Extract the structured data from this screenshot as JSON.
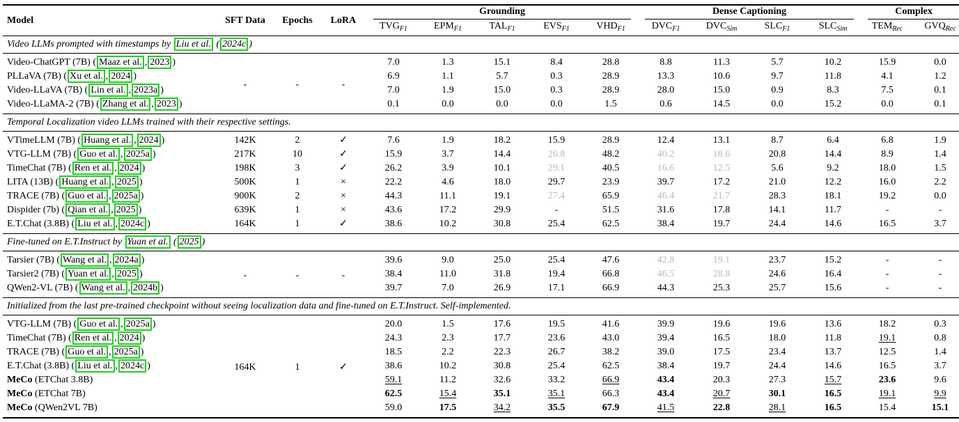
{
  "table": {
    "head": {
      "model": "Model",
      "sft": "SFT Data",
      "epochs": "Epochs",
      "lora": "LoRA",
      "groups": [
        {
          "label": "Grounding",
          "span": 5
        },
        {
          "label": "Dense Captioning",
          "span": 4
        },
        {
          "label": "Complex",
          "span": 2
        }
      ],
      "metrics": [
        {
          "base": "TVG",
          "sub": "F1"
        },
        {
          "base": "EPM",
          "sub": "F1"
        },
        {
          "base": "TAL",
          "sub": "F1"
        },
        {
          "base": "EVS",
          "sub": "F1"
        },
        {
          "base": "VHD",
          "sub": "F1"
        },
        {
          "base": "DVC",
          "sub": "F1"
        },
        {
          "base": "DVC",
          "sub": "Sim"
        },
        {
          "base": "SLC",
          "sub": "F1"
        },
        {
          "base": "SLC",
          "sub": "Sim"
        },
        {
          "base": "TEM",
          "sub": "Rec"
        },
        {
          "base": "GVQ",
          "sub": "Rec"
        }
      ]
    },
    "colors": {
      "citation_box": "#1fd11f",
      "muted_value": "#b9b9b9"
    },
    "symbols": {
      "check": "✓",
      "cross": "×",
      "dash": "-"
    },
    "sections": [
      {
        "header": {
          "text": "Video LLMs prompted with timestamps by ",
          "author": "Liu et al.",
          "year": "2024c",
          "cite_style": "textual"
        },
        "meta_span": [
          "-",
          "-",
          "-"
        ],
        "rows": [
          {
            "model": {
              "text": "Video-ChatGPT (7B)",
              "author": "Maaz et al.",
              "year": "2023"
            },
            "values": [
              "7.0",
              "1.3",
              "15.1",
              "8.4",
              "28.8",
              "8.8",
              "11.3",
              "5.7",
              "10.2",
              "15.9",
              "0.0"
            ]
          },
          {
            "model": {
              "text": "PLLaVA (7B)",
              "author": "Xu et al.",
              "year": "2024"
            },
            "values": [
              "6.9",
              "1.1",
              "5.7",
              "0.3",
              "28.9",
              "13.3",
              "10.6",
              "9.7",
              "11.8",
              "4.1",
              "1.2"
            ]
          },
          {
            "model": {
              "text": "Video-LLaVA (7B)",
              "author": "Lin et al.",
              "year": "2023a"
            },
            "values": [
              "7.0",
              "1.9",
              "15.0",
              "0.3",
              "28.9",
              "28.0",
              "15.0",
              "0.9",
              "8.3",
              "7.5",
              "0.1"
            ]
          },
          {
            "model": {
              "text": "Video-LLaMA-2 (7B)",
              "author": "Zhang et al.",
              "year": "2023"
            },
            "values": [
              "0.1",
              "0.0",
              "0.0",
              "0.0",
              "1.5",
              "0.6",
              "14.5",
              "0.0",
              "15.2",
              "0.0",
              "0.1"
            ]
          }
        ]
      },
      {
        "header": {
          "text": "Temporal Localization video LLMs trained with their respective settings."
        },
        "rows": [
          {
            "model": {
              "text": "VTimeLLM (7B)",
              "author": "Huang et al.",
              "year": "2024"
            },
            "meta": [
              "142K",
              "2",
              "✓"
            ],
            "values": [
              "7.6",
              "1.9",
              "18.2",
              "15.9",
              "28.9",
              "12.4",
              "13.1",
              "8.7",
              "6.4",
              "6.8",
              "1.9"
            ]
          },
          {
            "model": {
              "text": "VTG-LLM (7B)",
              "author": "Guo et al.",
              "year": "2025a"
            },
            "meta": [
              "217K",
              "10",
              "✓"
            ],
            "values": [
              "15.9",
              "3.7",
              "14.4",
              {
                "v": "26.8",
                "s": "g"
              },
              "48.2",
              {
                "v": "40.2",
                "s": "g"
              },
              {
                "v": "18.6",
                "s": "g"
              },
              "20.8",
              "14.4",
              "8.9",
              "1.4"
            ]
          },
          {
            "model": {
              "text": "TimeChat (7B)",
              "author": "Ren et al.",
              "year": "2024"
            },
            "meta": [
              "198K",
              "3",
              "✓"
            ],
            "values": [
              "26.2",
              "3.9",
              "10.1",
              {
                "v": "29.1",
                "s": "g"
              },
              "40.5",
              {
                "v": "16.6",
                "s": "g"
              },
              {
                "v": "12.5",
                "s": "g"
              },
              "5.6",
              "9.2",
              "18.0",
              "1.5"
            ]
          },
          {
            "model": {
              "text": "LITA (13B)",
              "author": "Huang et al.",
              "year": "2025"
            },
            "meta": [
              "500K",
              "1",
              "×"
            ],
            "values": [
              "22.2",
              "4.6",
              "18.0",
              "29.7",
              "23.9",
              "39.7",
              "17.2",
              "21.0",
              "12.2",
              "16.0",
              "2.2"
            ]
          },
          {
            "model": {
              "text": "TRACE (7B)",
              "author": "Guo et al.",
              "year": "2025a"
            },
            "meta": [
              "900K",
              "2",
              "×"
            ],
            "values": [
              "44.3",
              "11.1",
              "19.1",
              {
                "v": "27.4",
                "s": "g"
              },
              "65.9",
              {
                "v": "46.4",
                "s": "g"
              },
              {
                "v": "21.7",
                "s": "g"
              },
              "28.3",
              "18.1",
              "19.2",
              "0.0"
            ]
          },
          {
            "model": {
              "text": "Dispider (7b)",
              "author": "Qian et al.",
              "year": "2025"
            },
            "meta": [
              "639K",
              "1",
              "×"
            ],
            "values": [
              "43.6",
              "17.2",
              "29.9",
              "-",
              "51.5",
              "31.6",
              "17.8",
              "14.1",
              "11.7",
              "-",
              "-"
            ]
          },
          {
            "model": {
              "text": "E.T.Chat (3.8B)",
              "author": "Liu et al.",
              "year": "2024c"
            },
            "meta": [
              "164K",
              "1",
              "✓"
            ],
            "values": [
              "38.6",
              "10.2",
              "30.8",
              "25.4",
              "62.5",
              "38.4",
              "19.7",
              "24.4",
              "14.6",
              "16.5",
              "3.7"
            ]
          }
        ]
      },
      {
        "header": {
          "text": "Fine-tuned on E.T.Instruct by ",
          "author": "Yuan et al.",
          "year": "2025",
          "cite_style": "textual"
        },
        "meta_span": [
          "-",
          "-",
          "-"
        ],
        "rows": [
          {
            "model": {
              "text": "Tarsier (7B)",
              "author": "Wang et al.",
              "year": "2024a"
            },
            "values": [
              "39.6",
              "9.0",
              "25.0",
              "25.4",
              "47.6",
              {
                "v": "42.8",
                "s": "g"
              },
              {
                "v": "19.1",
                "s": "g"
              },
              "23.7",
              "15.2",
              "-",
              "-"
            ]
          },
          {
            "model": {
              "text": "Tarsier2 (7B)",
              "author": "Yuan et al.",
              "year": "2025"
            },
            "values": [
              "38.4",
              "11.0",
              "31.8",
              "19.4",
              "66.8",
              {
                "v": "46.5",
                "s": "g"
              },
              {
                "v": "28.8",
                "s": "g"
              },
              "24.6",
              "16.4",
              "-",
              "-"
            ]
          },
          {
            "model": {
              "text": "QWen2-VL (7B)",
              "author": "Wang et al.",
              "year": "2024b"
            },
            "values": [
              "39.7",
              "7.0",
              "26.9",
              "17.1",
              "66.9",
              "44.3",
              "25.3",
              "25.7",
              "15.6",
              "-",
              "-"
            ]
          }
        ]
      },
      {
        "header": {
          "text": "Initialized from the last pre-trained checkpoint without seeing localization data and fine-tuned on E.T.Instruct. Self-implemented."
        },
        "meta_span": [
          "164K",
          "1",
          "✓"
        ],
        "rows": [
          {
            "model": {
              "text": "VTG-LLM (7B)",
              "author": "Guo et al.",
              "year": "2025a"
            },
            "values": [
              "20.0",
              "1.5",
              "17.6",
              "19.5",
              "41.6",
              "39.9",
              "19.6",
              "19.6",
              "13.6",
              "18.2",
              "0.3"
            ]
          },
          {
            "model": {
              "text": "TimeChat (7B)",
              "author": "Ren et al.",
              "year": "2024"
            },
            "values": [
              "24.3",
              "2.3",
              "17.7",
              "23.6",
              "43.0",
              "39.4",
              "16.5",
              "18.0",
              "11.8",
              {
                "v": "19.1",
                "s": "u"
              },
              "0.8"
            ]
          },
          {
            "model": {
              "text": "TRACE (7B)",
              "author": "Guo et al.",
              "year": "2025a"
            },
            "values": [
              "18.5",
              "2.2",
              "22.3",
              "26.7",
              "38.2",
              "39.0",
              "17.5",
              "23.4",
              "13.7",
              "12.5",
              "1.4"
            ]
          },
          {
            "model": {
              "text": "E.T.Chat (3.8B)",
              "author": "Liu et al.",
              "year": "2024c"
            },
            "values": [
              "38.6",
              "10.2",
              "30.8",
              "25.4",
              "62.5",
              "38.4",
              "19.7",
              "24.4",
              "14.6",
              "16.5",
              "3.7"
            ]
          },
          {
            "model": {
              "bold_prefix": "MeCo",
              "text": " (ETChat 3.8B)"
            },
            "values": [
              {
                "v": "59.1",
                "s": "u"
              },
              "11.2",
              "32.6",
              "33.2",
              {
                "v": "66.9",
                "s": "u"
              },
              {
                "v": "43.4",
                "s": "b"
              },
              "20.3",
              "27.3",
              {
                "v": "15.7",
                "s": "u"
              },
              {
                "v": "23.6",
                "s": "b"
              },
              "9.6"
            ]
          },
          {
            "model": {
              "bold_prefix": "MeCo",
              "text": " (ETChat 7B)"
            },
            "values": [
              {
                "v": "62.5",
                "s": "b"
              },
              {
                "v": "15.4",
                "s": "u"
              },
              {
                "v": "35.1",
                "s": "b"
              },
              {
                "v": "35.1",
                "s": "u"
              },
              "66.3",
              {
                "v": "43.4",
                "s": "b"
              },
              {
                "v": "20.7",
                "s": "u"
              },
              {
                "v": "30.1",
                "s": "b"
              },
              {
                "v": "16.5",
                "s": "b"
              },
              {
                "v": "19.1",
                "s": "u"
              },
              {
                "v": "9.9",
                "s": "u"
              }
            ]
          },
          {
            "model": {
              "bold_prefix": "MeCo",
              "text": " (QWen2VL 7B)"
            },
            "values": [
              "59.0",
              {
                "v": "17.5",
                "s": "b"
              },
              {
                "v": "34.2",
                "s": "u"
              },
              {
                "v": "35.5",
                "s": "b"
              },
              {
                "v": "67.9",
                "s": "b"
              },
              {
                "v": "41.5",
                "s": "u"
              },
              {
                "v": "22.8",
                "s": "b"
              },
              {
                "v": "28.1",
                "s": "u"
              },
              {
                "v": "16.5",
                "s": "b"
              },
              "15.4",
              {
                "v": "15.1",
                "s": "b"
              }
            ]
          }
        ]
      }
    ]
  }
}
